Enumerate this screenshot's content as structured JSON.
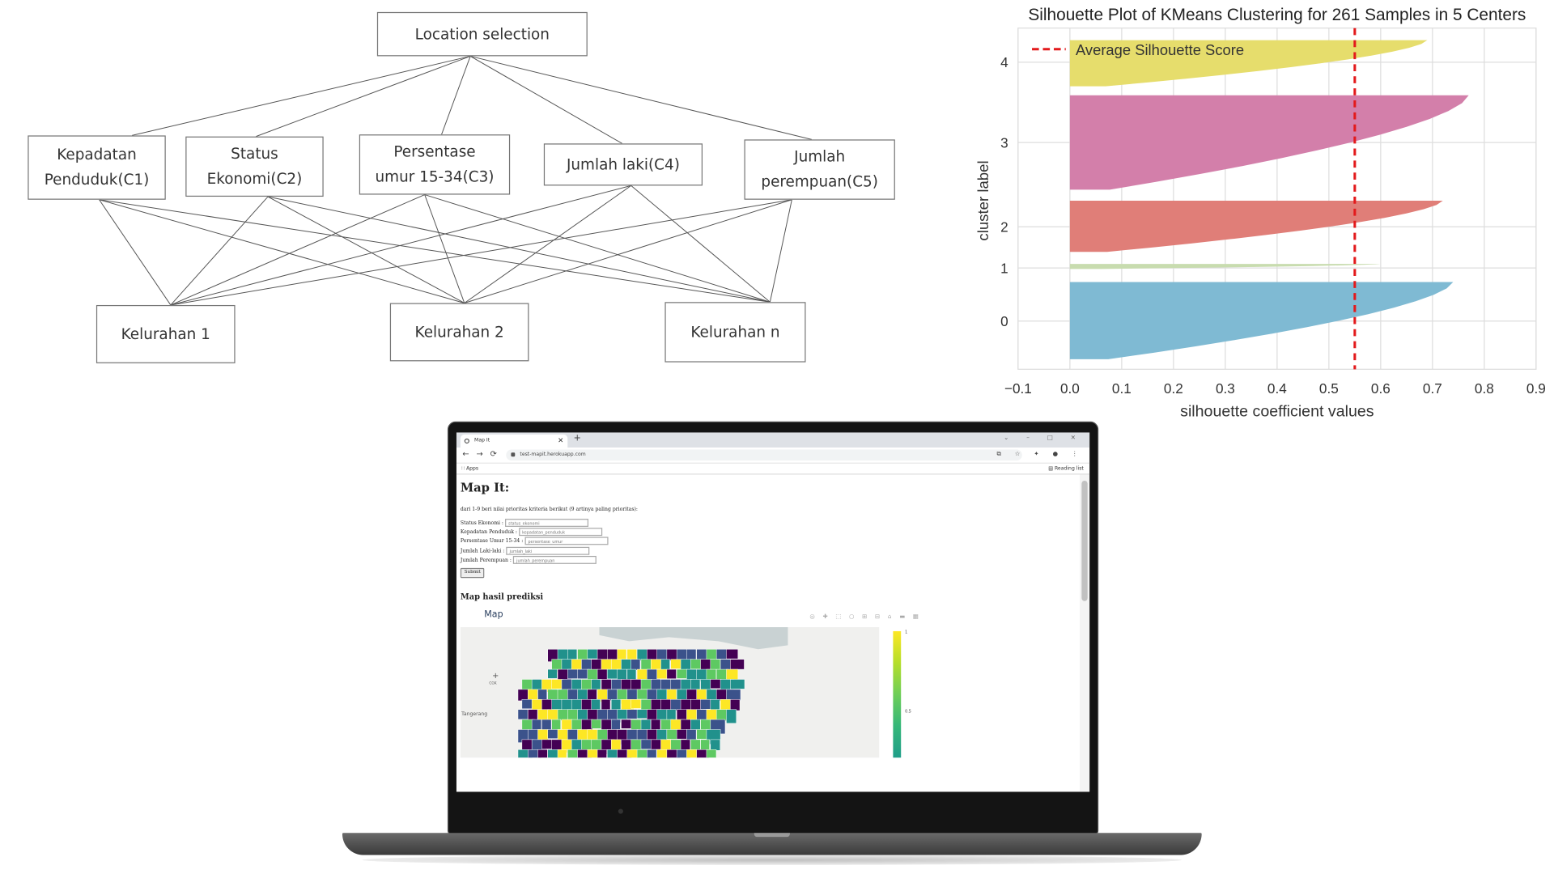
{
  "ahp": {
    "goal": "Location selection",
    "criteria": [
      "Kepadatan\nPenduduk(C1)",
      "Status\nEkonomi(C2)",
      "Persentase\numur 15-34(C3)",
      "Jumlah laki(C4)",
      "Jumlah\nperempuan(C5)"
    ],
    "alternatives": [
      "Kelurahan 1",
      "Kelurahan 2",
      "Kelurahan n"
    ]
  },
  "chart_data": {
    "type": "area",
    "title": "Silhouette Plot of KMeans Clustering for 261 Samples in 5 Centers",
    "xlabel": "silhouette coefficient values",
    "ylabel": "cluster label",
    "xlim": [
      -0.1,
      0.9
    ],
    "x_ticks": [
      "−0.1",
      "0.0",
      "0.1",
      "0.2",
      "0.3",
      "0.4",
      "0.5",
      "0.6",
      "0.7",
      "0.8",
      "0.9"
    ],
    "y_ticks": [
      "4",
      "3",
      "2",
      "1",
      "0"
    ],
    "grid": true,
    "legend": {
      "position": "top-left",
      "entries": [
        "Average Silhouette Score"
      ]
    },
    "average_silhouette_score": 0.55,
    "series": [
      {
        "name": "0",
        "color": "#7fbad3",
        "max": 0.74,
        "min": 0.0
      },
      {
        "name": "1",
        "color": "#c8dcaf",
        "max": 0.6,
        "min": 0.0
      },
      {
        "name": "2",
        "color": "#e07e78",
        "max": 0.72,
        "min": 0.0
      },
      {
        "name": "3",
        "color": "#d37faa",
        "max": 0.77,
        "min": 0.0
      },
      {
        "name": "4",
        "color": "#e6dd6c",
        "max": 0.69,
        "min": 0.0
      }
    ]
  },
  "browser": {
    "tab_title": "Map It",
    "close_glyph": "✕",
    "new_tab_glyph": "+",
    "window_controls": "⌄ – □ ✕",
    "back": "←",
    "forward": "→",
    "reload": "⟳",
    "url": "test-mapit.herokuapp.com",
    "toolbar_icons": "⧉ ☆ ✦ ● ⋮",
    "apps_label": "∷ Apps",
    "reading_list_label": "▤ Reading list"
  },
  "app": {
    "title": "Map It:",
    "instruction": "dari 1-9 beri nilai prioritas kriteria berikut (9 artinya paling prioritas):",
    "fields": [
      {
        "label": "Status Ekonomi :",
        "placeholder": "status_ekonomi"
      },
      {
        "label": "Kepadatan Penduduk :",
        "placeholder": "kepadatan_penduduk"
      },
      {
        "label": "Persentase Umur 15-34 :",
        "placeholder": "persentase_umur"
      },
      {
        "label": "Jumlah Laki-laki :",
        "placeholder": "jumlah_laki"
      },
      {
        "label": "Jumlah Perempuan :",
        "placeholder": "jumlah_perempuan"
      }
    ],
    "submit": "Submit",
    "map_section_title": "Map hasil prediksi",
    "map_title": "Map",
    "modebar": "◎ ✚ ⬚ ○ ⊞ ⊟ ⌂ ▬ ▦",
    "map_labels": {
      "zoom_in": "+",
      "city_left": "Tangerang",
      "small_label": "CGK"
    },
    "colorbar_ticks": [
      "1",
      "0.5"
    ],
    "colorscale": [
      "#440154",
      "#3b528b",
      "#21918c",
      "#5ec962",
      "#fde725"
    ]
  }
}
